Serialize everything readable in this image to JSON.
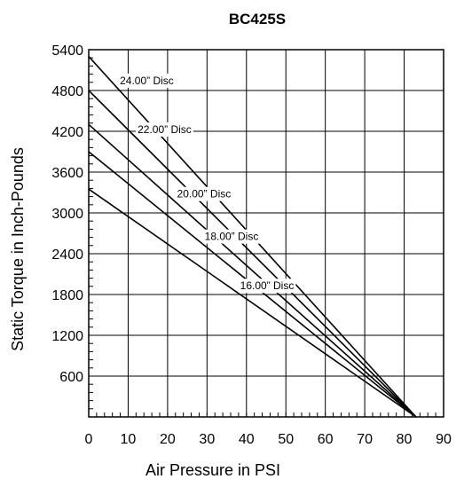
{
  "chart_data": {
    "type": "line",
    "title": "BC425S",
    "xlabel": "Air Pressure in PSI",
    "ylabel": "Static Torque in Inch-Pounds",
    "xlim": [
      0,
      90
    ],
    "ylim": [
      0,
      5400
    ],
    "x_ticks": [
      0,
      10,
      20,
      30,
      40,
      50,
      60,
      70,
      80,
      90
    ],
    "y_ticks": [
      600,
      1200,
      1800,
      2400,
      3000,
      3600,
      4200,
      4800,
      5400
    ],
    "grid": true,
    "series": [
      {
        "name": "24.00” Disc",
        "x": [
          0,
          83
        ],
        "y": [
          5300,
          0
        ]
      },
      {
        "name": "22.00” Disc",
        "x": [
          0,
          83
        ],
        "y": [
          4800,
          0
        ]
      },
      {
        "name": "20.00” Disc",
        "x": [
          0,
          83
        ],
        "y": [
          4300,
          0
        ]
      },
      {
        "name": "18.00” Disc",
        "x": [
          0,
          83
        ],
        "y": [
          3900,
          0
        ]
      },
      {
        "name": "16.00” Disc",
        "x": [
          0,
          83
        ],
        "y": [
          3350,
          0
        ]
      }
    ]
  }
}
